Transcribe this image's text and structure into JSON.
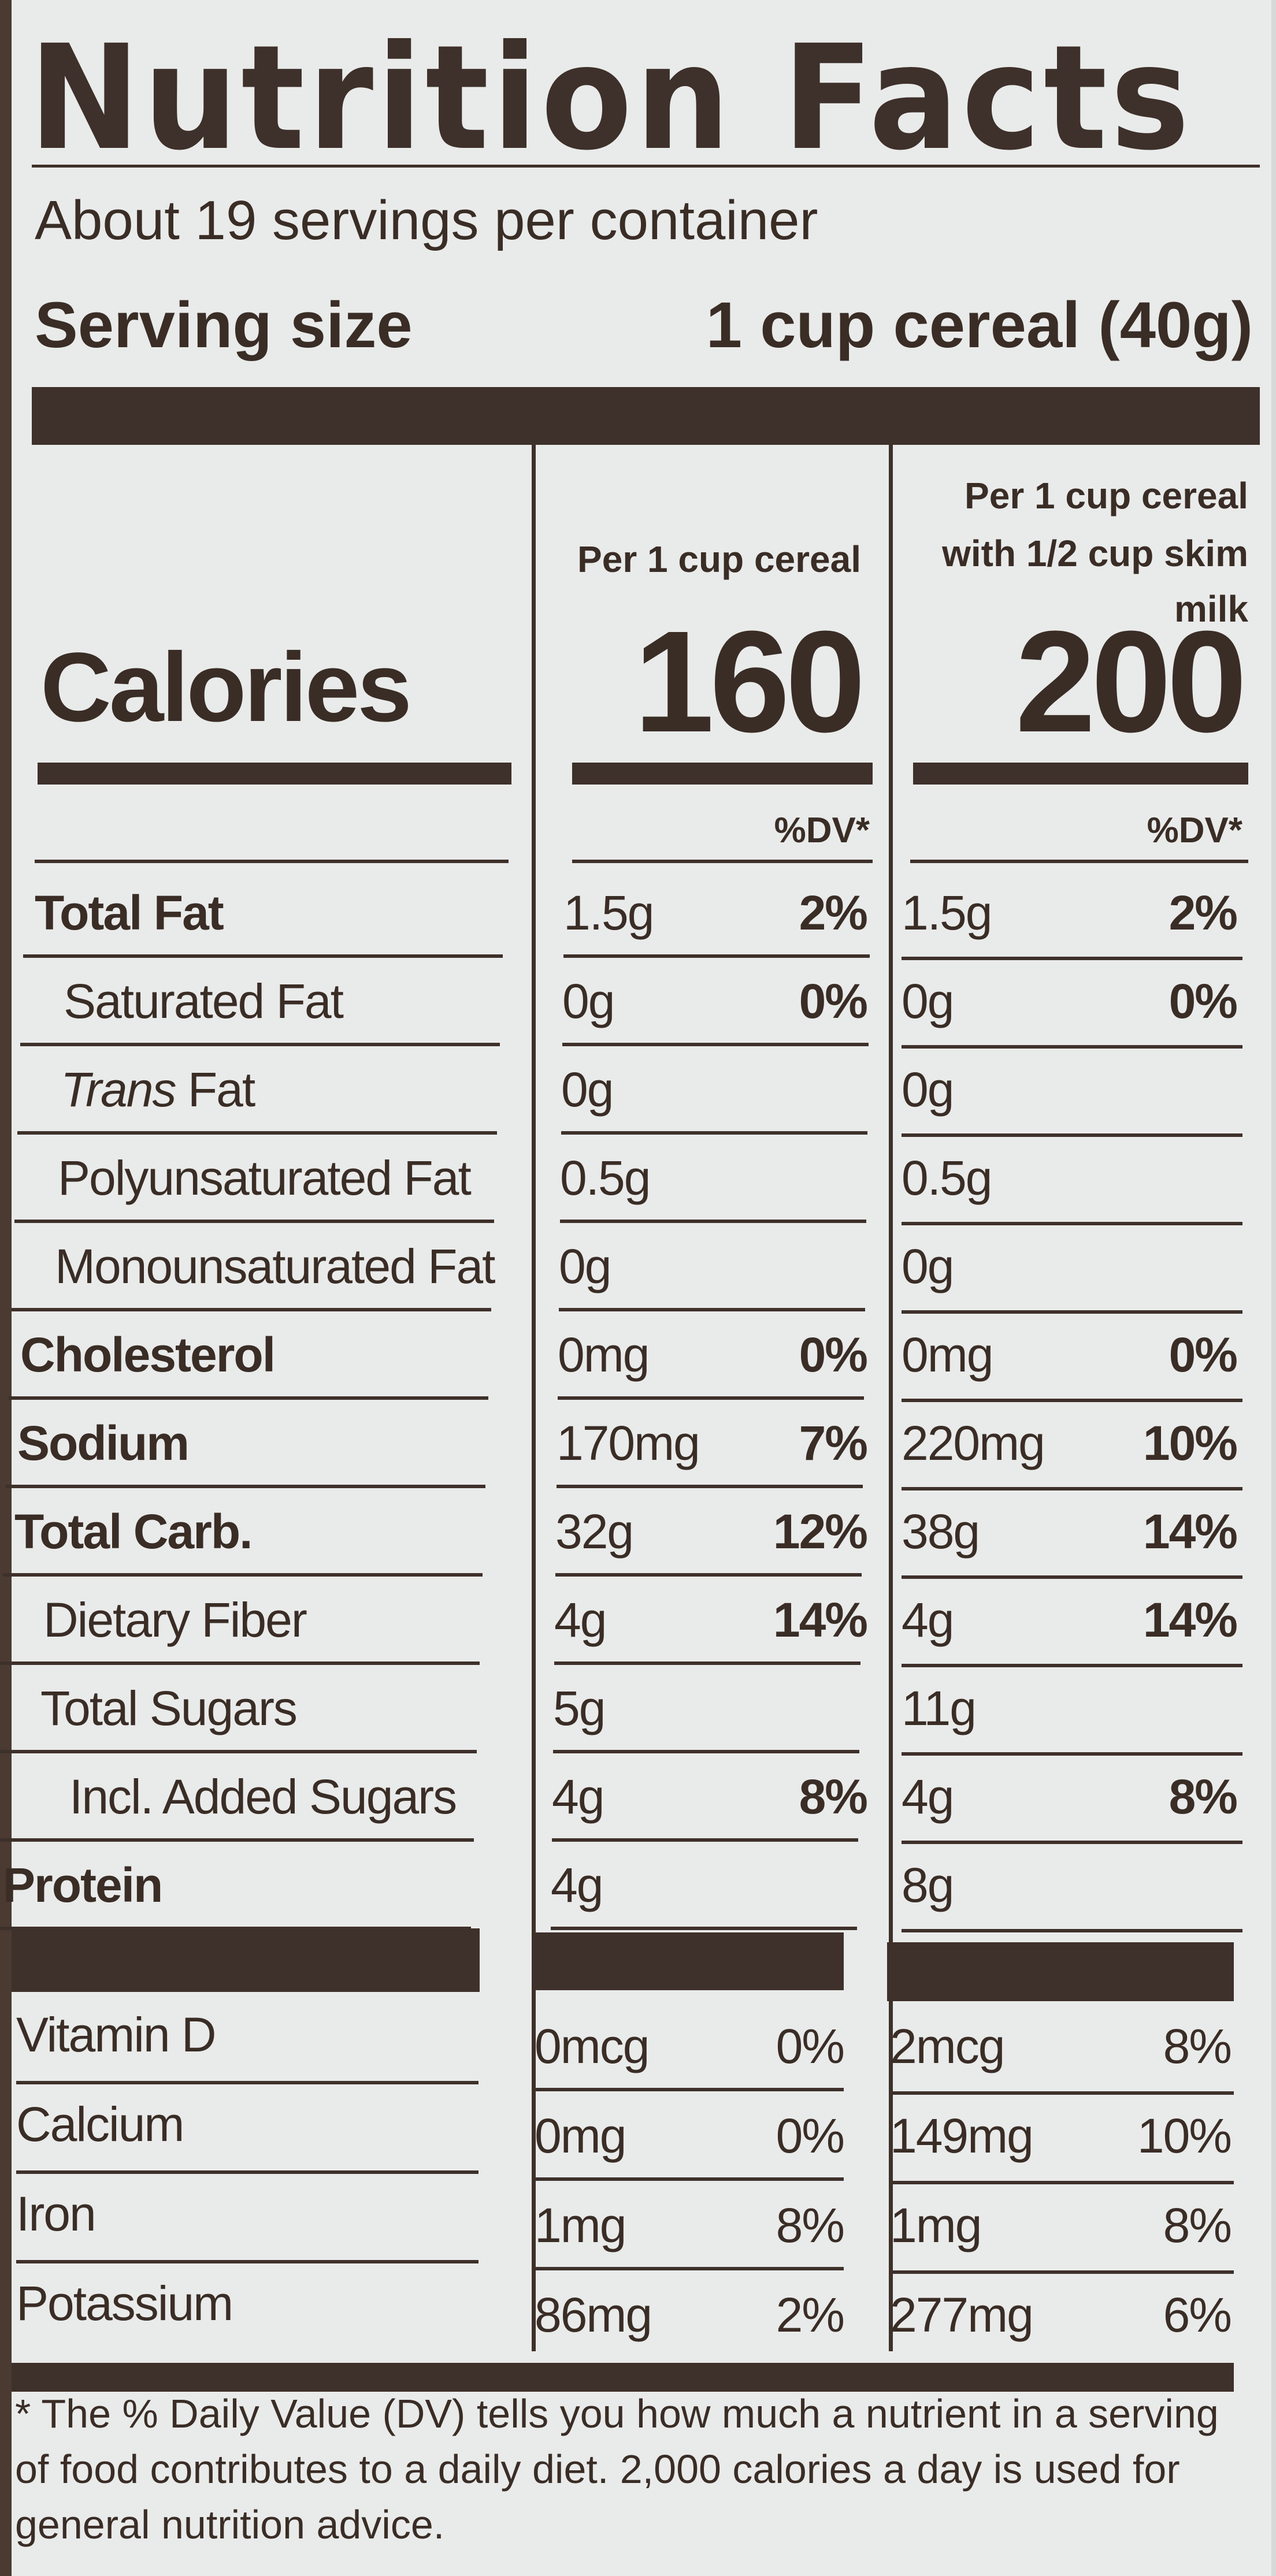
{
  "label": {
    "title": "Nutrition Facts",
    "servings_per_container": "About 19 servings per container",
    "serving_size_label": "Serving size",
    "serving_size_value": "1 cup cereal (40g)"
  },
  "columns": {
    "col1_header": "Per 1 cup cereal",
    "col2_header_line1": "Per 1 cup cereal",
    "col2_header_line2": "with 1/2 cup skim milk",
    "dv_header": "%DV*"
  },
  "calories": {
    "label": "Calories",
    "col1": "160",
    "col2": "200"
  },
  "nutrients": [
    {
      "label": "Total Fat",
      "bold": true,
      "amt1": "1.5g",
      "dv1": "2%",
      "amt2": "1.5g",
      "dv2": "2%"
    },
    {
      "label": "Saturated Fat",
      "bold": false,
      "amt1": "0g",
      "dv1": "0%",
      "amt2": "0g",
      "dv2": "0%"
    },
    {
      "label_italic": "Trans",
      "label_rest": " Fat",
      "bold": false,
      "amt1": "0g",
      "dv1": "",
      "amt2": "0g",
      "dv2": ""
    },
    {
      "label": "Polyunsaturated Fat",
      "bold": false,
      "amt1": "0.5g",
      "dv1": "",
      "amt2": "0.5g",
      "dv2": ""
    },
    {
      "label": "Monounsaturated Fat",
      "bold": false,
      "amt1": "0g",
      "dv1": "",
      "amt2": "0g",
      "dv2": ""
    },
    {
      "label": "Cholesterol",
      "bold": true,
      "amt1": "0mg",
      "dv1": "0%",
      "amt2": "0mg",
      "dv2": "0%"
    },
    {
      "label": "Sodium",
      "bold": true,
      "amt1": "170mg",
      "dv1": "7%",
      "amt2": "220mg",
      "dv2": "10%"
    },
    {
      "label": "Total Carb.",
      "bold": true,
      "amt1": "32g",
      "dv1": "12%",
      "amt2": "38g",
      "dv2": "14%"
    },
    {
      "label": "Dietary Fiber",
      "bold": false,
      "amt1": "4g",
      "dv1": "14%",
      "amt2": "4g",
      "dv2": "14%"
    },
    {
      "label": "Total Sugars",
      "bold": false,
      "amt1": "5g",
      "dv1": "",
      "amt2": "11g",
      "dv2": ""
    },
    {
      "label": "Incl. Added Sugars",
      "bold": false,
      "amt1": "4g",
      "dv1": "8%",
      "amt2": "4g",
      "dv2": "8%"
    },
    {
      "label": "Protein",
      "bold": true,
      "amt1": "4g",
      "dv1": "",
      "amt2": "8g",
      "dv2": ""
    }
  ],
  "vitamins": [
    {
      "label": "Vitamin D",
      "amt1": "0mcg",
      "dv1": "0%",
      "amt2": "2mcg",
      "dv2": "8%"
    },
    {
      "label": "Calcium",
      "amt1": "0mg",
      "dv1": "0%",
      "amt2": "149mg",
      "dv2": "10%"
    },
    {
      "label": "Iron",
      "amt1": "1mg",
      "dv1": "8%",
      "amt2": "1mg",
      "dv2": "8%"
    },
    {
      "label": "Potassium",
      "amt1": "86mg",
      "dv1": "2%",
      "amt2": "277mg",
      "dv2": "6%"
    }
  ],
  "footnote": "* The % Daily Value (DV) tells you how much a nutrient in a serving of food contributes to a daily diet. 2,000 calories a day is used for general nutrition advice.",
  "colors": {
    "ink": "#3e302a",
    "paper": "#e9ebea"
  }
}
